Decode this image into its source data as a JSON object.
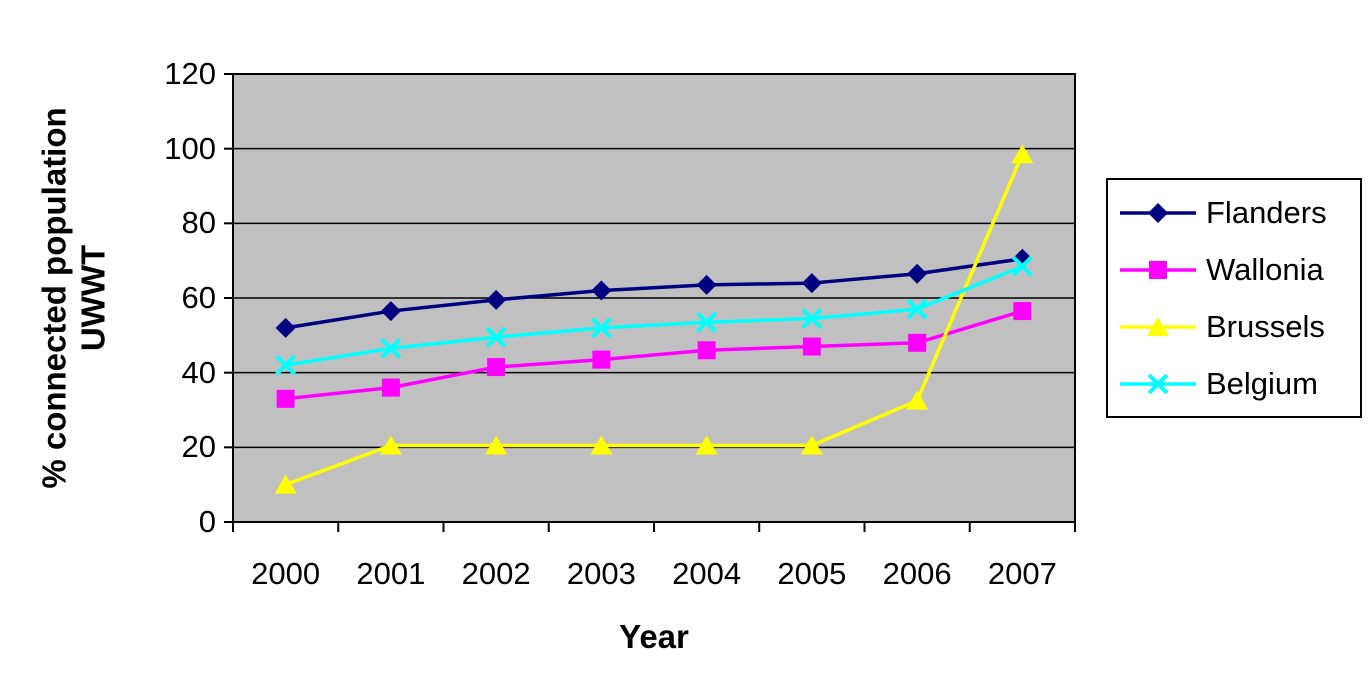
{
  "figure": {
    "background_color": "#FFFFFF",
    "plot_background_color": "#C0C0C0",
    "axis_color": "#000000",
    "text_color": "#000000"
  },
  "chart_data": {
    "type": "line",
    "title": "",
    "xlabel": "Year",
    "ylabel": "% connected population UWWT",
    "ylabel_lines": {
      "0": "% connected population",
      "1": "UWWT"
    },
    "categories": [
      "2000",
      "2001",
      "2002",
      "2003",
      "2004",
      "2005",
      "2006",
      "2007"
    ],
    "series": [
      {
        "name": "Flanders",
        "color": "#000080",
        "marker": "diamond",
        "values": [
          52,
          56.5,
          59.5,
          62,
          63.5,
          64,
          66.5,
          70.5
        ]
      },
      {
        "name": "Wallonia",
        "color": "#FF00FF",
        "marker": "square",
        "values": [
          33,
          36,
          41.5,
          43.5,
          46,
          47,
          48,
          56.5
        ]
      },
      {
        "name": "Brussels",
        "color": "#FFFF00",
        "marker": "triangle",
        "values": [
          10,
          20.5,
          20.5,
          20.5,
          20.5,
          20.5,
          32.5,
          98.5
        ]
      },
      {
        "name": "Belgium",
        "color": "#00FFFF",
        "marker": "x",
        "values": [
          42,
          46.5,
          49.5,
          52,
          53.5,
          54.5,
          57,
          68.5
        ]
      }
    ],
    "ylim": [
      0,
      120
    ],
    "yticks": [
      0,
      20,
      40,
      60,
      80,
      100,
      120
    ],
    "grid": true,
    "legend_position": "right",
    "plot_background": "#C0C0C0"
  }
}
